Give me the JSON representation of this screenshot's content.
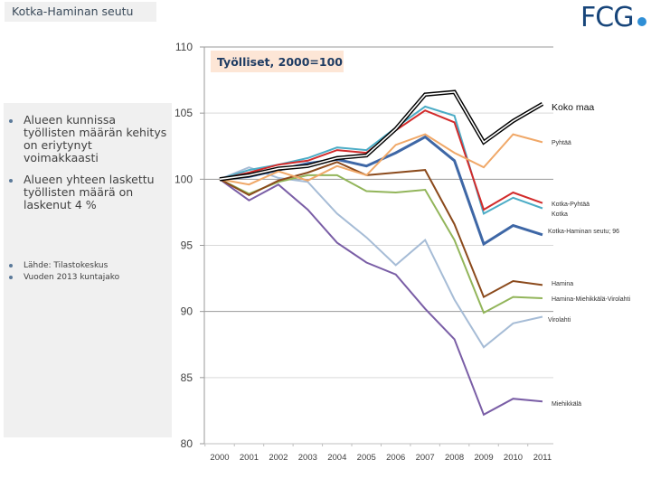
{
  "header": {
    "title": "Kotka-Haminan seutu",
    "logo_text": "FCG",
    "logo_dot_color": "#2f8fd6",
    "logo_color": "#17457a"
  },
  "bullets": [
    {
      "text": "Alueen kunnissa työllisten määrän kehitys on eriytynyt voimakkaasti"
    },
    {
      "text": "Alueen yhteen laskettu työllisten määrä on laskenut 4 %"
    }
  ],
  "notes": [
    {
      "text": "Lähde: Tilastokeskus"
    },
    {
      "text": "Vuoden 2013 kuntajako"
    }
  ],
  "chart_data": {
    "type": "line",
    "title": "Työlliset, 2000=100",
    "xlabel": "",
    "ylabel": "",
    "x": [
      "2000",
      "2001",
      "2002",
      "2003",
      "2004",
      "2005",
      "2006",
      "2007",
      "2008",
      "2009",
      "2010",
      "2011"
    ],
    "ylim": [
      80,
      110
    ],
    "yticks": [
      "80",
      "85",
      "90",
      "95",
      "100",
      "105",
      "110"
    ],
    "grid": true,
    "legend": "inline-right",
    "series": [
      {
        "name": "Koko maa",
        "color": "#000000",
        "double": true,
        "values": [
          100,
          100.3,
          100.8,
          101.0,
          101.6,
          101.8,
          103.8,
          106.4,
          106.6,
          102.8,
          104.4,
          105.7
        ]
      },
      {
        "name": "Pyhtää",
        "color": "#f0a868",
        "values": [
          100,
          99.6,
          100.6,
          99.9,
          101.0,
          100.3,
          102.6,
          103.4,
          102.0,
          100.9,
          103.4,
          102.8
        ]
      },
      {
        "name": "Kotka-Pyhtää",
        "color": "#d22b2b",
        "values": [
          100,
          100.5,
          101.1,
          101.4,
          102.2,
          102.0,
          103.7,
          105.2,
          104.3,
          97.7,
          99.0,
          98.2
        ]
      },
      {
        "name": "Kotka",
        "color": "#4bacc6",
        "values": [
          100,
          100.7,
          101.1,
          101.6,
          102.4,
          102.2,
          103.9,
          105.5,
          104.8,
          97.4,
          98.6,
          97.8
        ]
      },
      {
        "name": "Kotka-Haminan seutu; 96",
        "color": "#3e67a6",
        "values": [
          100,
          100.2,
          100.7,
          101.2,
          101.5,
          101.0,
          102.0,
          103.2,
          101.4,
          95.1,
          96.5,
          95.8
        ]
      },
      {
        "name": "Hamina",
        "color": "#8b4a1c",
        "values": [
          100,
          98.8,
          99.9,
          100.5,
          101.3,
          100.3,
          100.5,
          100.7,
          96.6,
          91.1,
          92.3,
          92.0
        ]
      },
      {
        "name": "Hamina-Miehikkälä-Virolahti",
        "color": "#92b55a",
        "values": [
          100,
          98.9,
          99.8,
          100.3,
          100.3,
          99.1,
          99.0,
          99.2,
          95.4,
          89.9,
          91.1,
          91.0
        ]
      },
      {
        "name": "Virolahti",
        "color": "#a6bcd6",
        "values": [
          100,
          100.9,
          100.1,
          99.8,
          97.4,
          95.6,
          93.5,
          95.4,
          90.9,
          87.3,
          89.1,
          89.6
        ]
      },
      {
        "name": "Miehikkälä",
        "color": "#7a5ea6",
        "values": [
          100,
          98.4,
          99.6,
          97.7,
          95.2,
          93.7,
          92.8,
          90.2,
          87.9,
          82.2,
          83.4,
          83.2
        ]
      }
    ]
  }
}
